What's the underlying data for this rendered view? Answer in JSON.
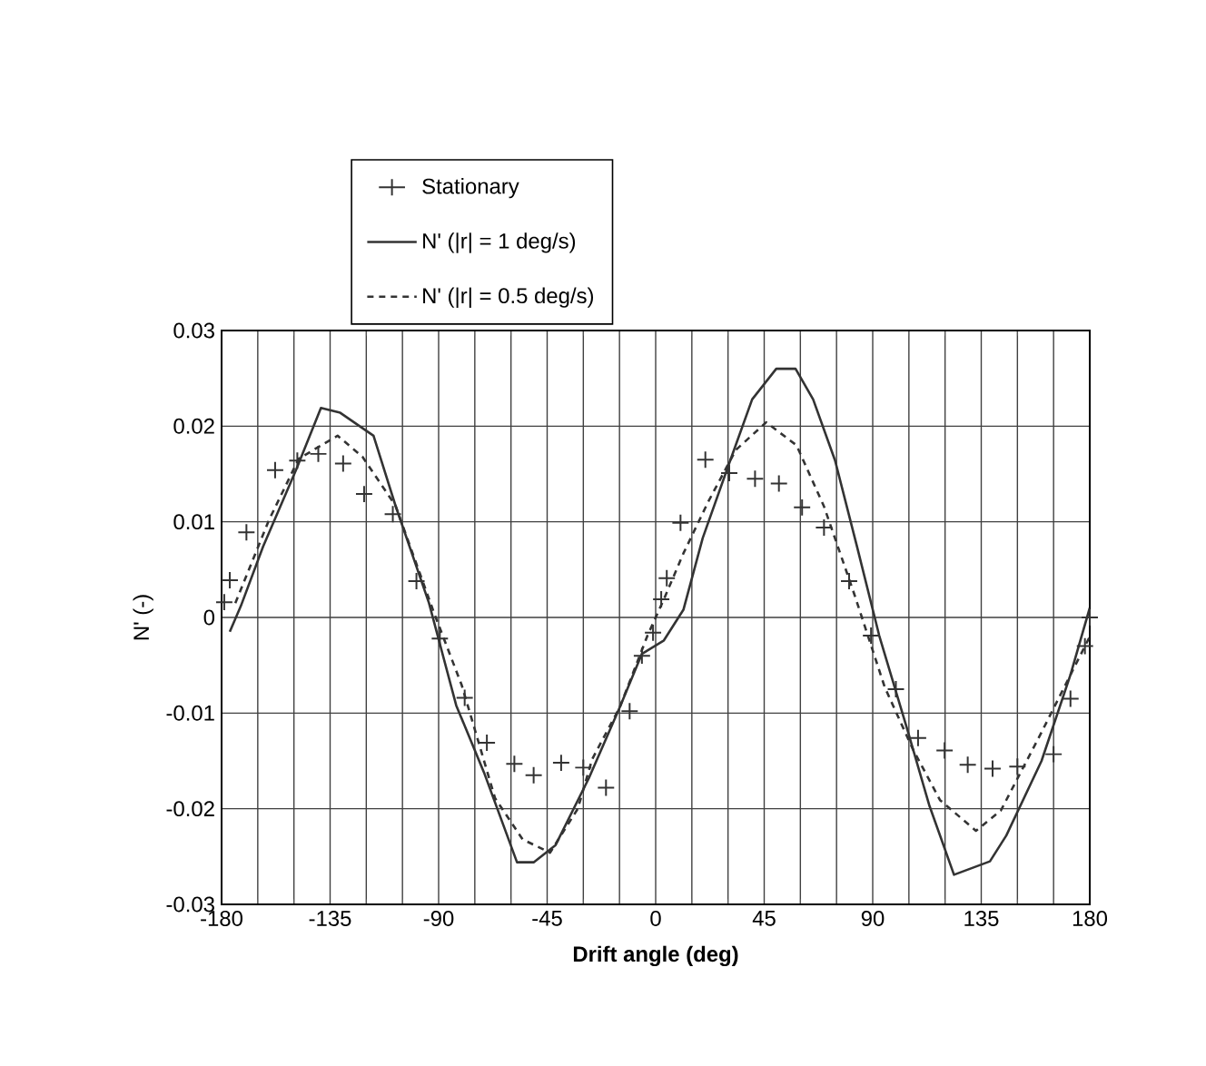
{
  "chart_data": {
    "type": "line",
    "xlabel": "**Drift angle (deg)**",
    "ylabel": "N' (-)",
    "xlim": [
      -180,
      180
    ],
    "ylim": [
      -0.03,
      0.03
    ],
    "xticks": [
      -180,
      -135,
      -90,
      -45,
      0,
      45,
      90,
      135,
      180
    ],
    "yticks": [
      -0.03,
      -0.02,
      -0.01,
      0,
      0.01,
      0.02,
      0.03
    ],
    "grid": true,
    "legend": "top",
    "series": [
      {
        "name": "Stationary",
        "type": "scatter",
        "marker": "cross",
        "color": "#333333",
        "x": [
          -178.9,
          -176.6,
          -169.7,
          -157.8,
          -148.6,
          -139.9,
          -129.6,
          -120.9,
          -109,
          -99.2,
          -89.5,
          -79.2,
          -70,
          -58.6,
          -50.6,
          -39.2,
          -30,
          -20.6,
          -10.8,
          -5.7,
          -1.1,
          2.3,
          4.6,
          10.3,
          20.6,
          30.5,
          41.2,
          51.1,
          60.7,
          69.8,
          80.2,
          89.3,
          99.6,
          108.8,
          119.8,
          129.4,
          139.7,
          150,
          165,
          172,
          178,
          180
        ],
        "values": [
          0.0016,
          0.0039,
          0.0089,
          0.0154,
          0.0164,
          0.0171,
          0.0161,
          0.0129,
          0.0108,
          0.0038,
          -0.0022,
          -0.0084,
          -0.0131,
          -0.0153,
          -0.0165,
          -0.0152,
          -0.0157,
          -0.0178,
          -0.0098,
          -0.004,
          -0.0016,
          0.0019,
          0.0041,
          0.0099,
          0.0165,
          0.0151,
          0.0145,
          0.014,
          0.0115,
          0.0094,
          0.0038,
          -0.0019,
          -0.0075,
          -0.0126,
          -0.0139,
          -0.0154,
          -0.0158,
          -0.0156,
          -0.0143,
          -0.0085,
          -0.003,
          0.0
        ]
      },
      {
        "name": "N' (|r| = 1 deg/s)",
        "line_style": "solid",
        "color": "#333333",
        "x": [
          -176.6,
          -172,
          -162.8,
          -149,
          -138.8,
          -130.8,
          -117,
          -107.9,
          -94,
          -82.7,
          -71.2,
          -57.5,
          -50.6,
          -41.5,
          -27.7,
          -14.9,
          -5.7,
          3.4,
          11.5,
          19.5,
          30.9,
          40,
          50,
          58,
          65.3,
          74.4,
          83.6,
          92.7,
          104.2,
          113.4,
          123.7,
          138.6,
          145.4,
          160,
          172,
          180
        ],
        "values": [
          -0.0015,
          0.0012,
          0.0074,
          0.0155,
          0.0219,
          0.0214,
          0.019,
          0.0117,
          0.0015,
          -0.0092,
          -0.0162,
          -0.0256,
          -0.0256,
          -0.0238,
          -0.0168,
          -0.0094,
          -0.0038,
          -0.0024,
          0.0008,
          0.0083,
          0.0164,
          0.0228,
          0.026,
          0.026,
          0.0228,
          0.0164,
          0.0073,
          -0.0019,
          -0.0116,
          -0.0196,
          -0.0269,
          -0.0255,
          -0.0228,
          -0.015,
          -0.006,
          0.001
        ]
      },
      {
        "name": "N' (|r| = 0.5 deg/s)",
        "line_style": "dashed",
        "color": "#333333",
        "x": [
          -174.3,
          -160.5,
          -148,
          -131.9,
          -121.6,
          -107.9,
          -91.8,
          -80.4,
          -66.6,
          -55.2,
          -43.8,
          -32.3,
          -26.3,
          -14.9,
          -3.4,
          3.4,
          11.5,
          21.8,
          33.2,
          45.8,
          58.4,
          69.8,
          82.4,
          95,
          106.5,
          117.9,
          132.8,
          143.1,
          160,
          172,
          180
        ],
        "values": [
          0.0015,
          0.0101,
          0.0166,
          0.019,
          0.0168,
          0.0117,
          0.0004,
          -0.0071,
          -0.0189,
          -0.0232,
          -0.0246,
          -0.02,
          -0.0148,
          -0.0094,
          -0.0019,
          0.0019,
          0.0067,
          0.0121,
          0.0175,
          0.0204,
          0.018,
          0.0116,
          0.0024,
          -0.0073,
          -0.0137,
          -0.0191,
          -0.0223,
          -0.0202,
          -0.012,
          -0.006,
          -0.002
        ]
      }
    ]
  }
}
